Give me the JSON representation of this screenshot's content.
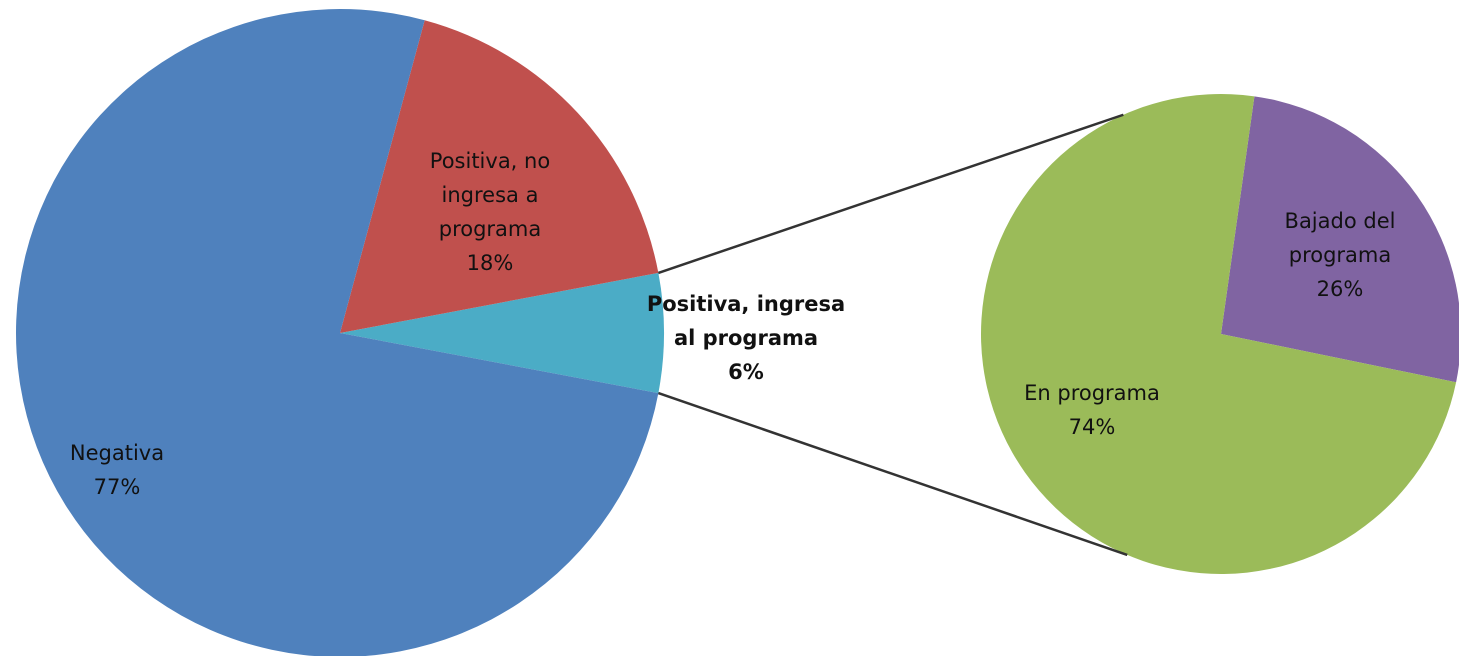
{
  "chart_data": {
    "type": "pie-of-pie",
    "categories": [
      "Negativa",
      "Positiva, no ingresa a programa",
      "Positiva, ingresa al programa"
    ],
    "values": [
      77,
      18,
      6
    ],
    "value_labels": [
      "77%",
      "18%",
      "6%"
    ],
    "colors": [
      "#4f81bd",
      "#c0504d",
      "#4bacc6"
    ],
    "secondary": {
      "categories": [
        "Bajado del programa",
        "En programa"
      ],
      "values": [
        26,
        74
      ],
      "value_labels": [
        "26%",
        "74%"
      ],
      "colors": [
        "#8064a2",
        "#9bbb59"
      ]
    }
  }
}
